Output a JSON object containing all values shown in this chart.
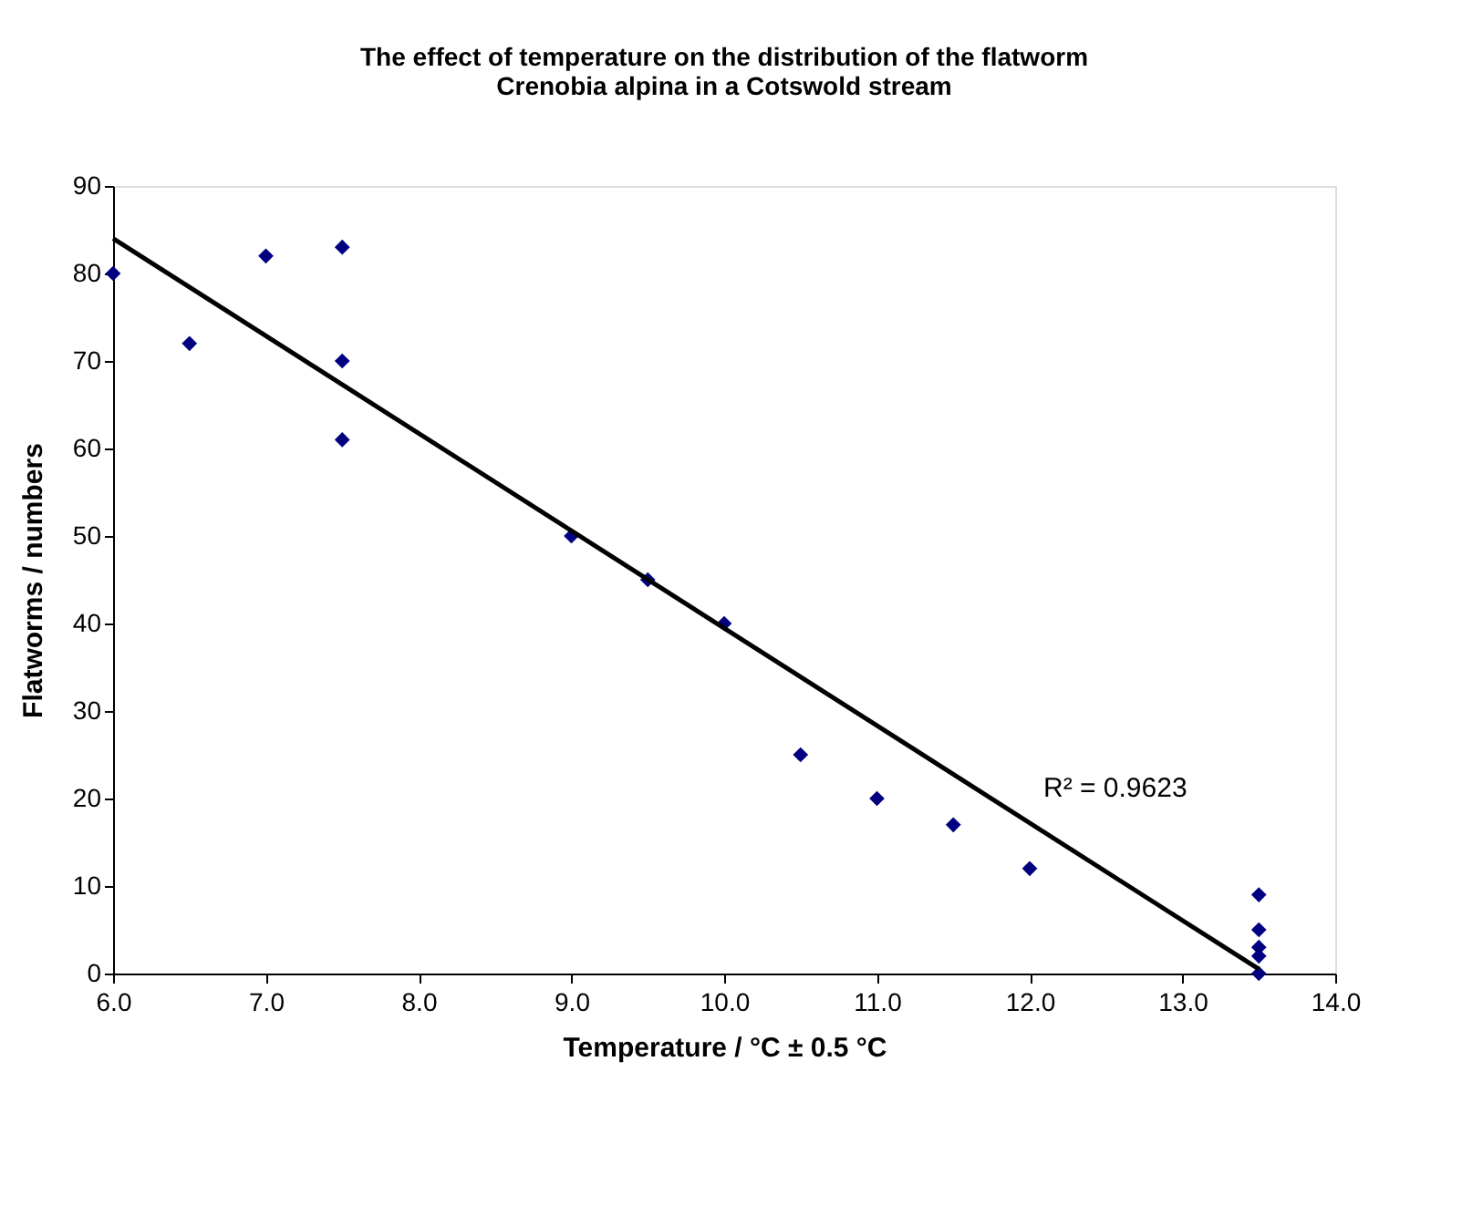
{
  "chart_data": {
    "type": "scatter",
    "title": "The effect of temperature on the distribution of the flatworm\nCrenobia alpina in a Cotswold stream",
    "xlabel": "Temperature / °C ± 0.5 °C",
    "ylabel": "Flatworms / numbers",
    "series": [
      {
        "color": "#000080",
        "marker": "diamond",
        "x": [
          6.0,
          6.5,
          7.0,
          7.5,
          7.5,
          7.5,
          9.0,
          9.5,
          10.0,
          10.5,
          11.0,
          11.5,
          12.0,
          13.5,
          13.5,
          13.5,
          13.5,
          13.5
        ],
        "values": [
          80,
          72,
          82,
          83,
          70,
          61,
          50,
          45,
          40,
          25,
          20,
          17,
          12,
          9,
          5,
          3,
          2,
          0
        ]
      },
      {
        "type": "line",
        "color": "#000000",
        "line_style": "solid",
        "x": [
          6.0,
          13.5
        ],
        "values": [
          84,
          0.5
        ]
      }
    ],
    "annotations": [
      "R² = 0.9623"
    ],
    "xlim": [
      6.0,
      14.0
    ],
    "xticks": [
      {
        "value": 6,
        "label": "6.0"
      },
      {
        "value": 7,
        "label": "7.0"
      },
      {
        "value": 8,
        "label": "8.0"
      },
      {
        "value": 9,
        "label": "9.0"
      },
      {
        "value": 10,
        "label": "10.0"
      },
      {
        "value": 11,
        "label": "11.0"
      },
      {
        "value": 12,
        "label": "12.0"
      },
      {
        "value": 13,
        "label": "13.0"
      },
      {
        "value": 14,
        "label": "14.0"
      }
    ],
    "ylim": [
      0,
      90
    ],
    "yticks": [
      0,
      10,
      20,
      30,
      40,
      50,
      60,
      70,
      80,
      90
    ],
    "grid": false
  }
}
